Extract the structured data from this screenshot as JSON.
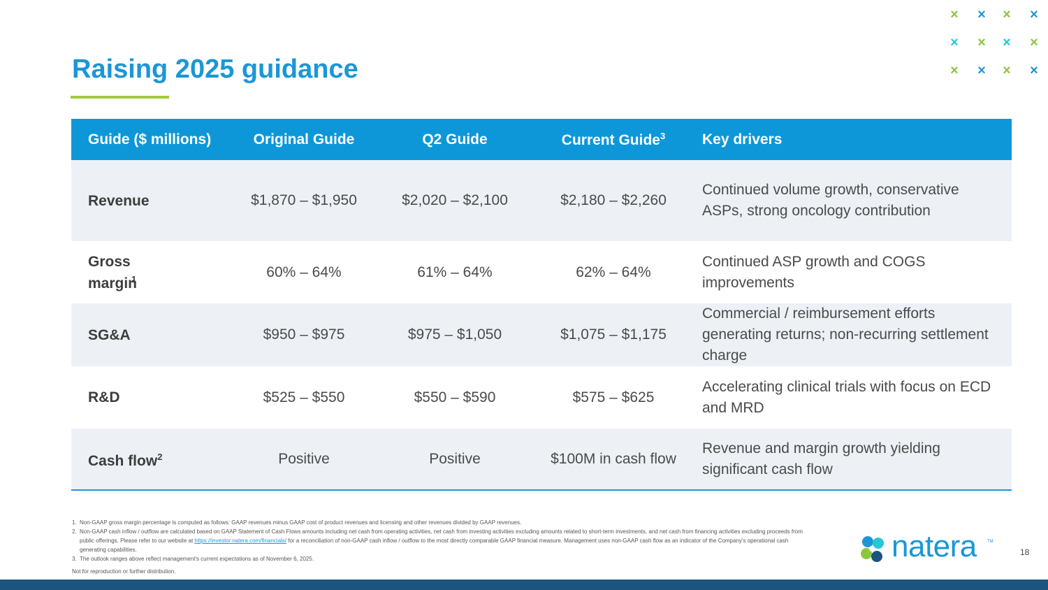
{
  "title": "Raising 2025 guidance",
  "colors": {
    "title": "#1b96d6",
    "accent_green": "#a3c940",
    "header_bg": "#0d97d9",
    "bottom_bar": "#1c5480",
    "x_green": "#8cc63f",
    "x_blue": "#1b96d6",
    "x_teal": "#29c5d8"
  },
  "table": {
    "headers": {
      "guide": "Guide ($ millions)",
      "original": "Original Guide",
      "q2": "Q2 Guide",
      "current": "Current Guide",
      "current_sup": "3",
      "drivers": "Key drivers"
    },
    "rows": [
      {
        "label": "Revenue",
        "sup": "",
        "original": "$1,870 – $1,950",
        "q2": "$2,020 – $2,100",
        "current": "$2,180 – $2,260",
        "drivers": "Continued volume growth, conservative ASPs, strong oncology contribution"
      },
      {
        "label": "Gross margin",
        "sup": "1",
        "original": "60% – 64%",
        "q2": "61% – 64%",
        "current": "62% – 64%",
        "drivers": "Continued ASP growth and COGS improvements"
      },
      {
        "label": "SG&A",
        "sup": "",
        "original": "$950 – $975",
        "q2": "$975 – $1,050",
        "current": "$1,075 – $1,175",
        "drivers": "Commercial / reimbursement efforts generating returns; non-recurring settlement charge"
      },
      {
        "label": "R&D",
        "sup": "",
        "original": "$525 – $550",
        "q2": "$550 – $590",
        "current": "$575 – $625",
        "drivers": "Accelerating clinical trials with focus on ECD and MRD"
      },
      {
        "label": "Cash flow",
        "sup": "2",
        "original": "Positive",
        "q2": "Positive",
        "current": "$100M in cash flow",
        "drivers": "Revenue and margin growth yielding significant cash flow"
      }
    ]
  },
  "footnotes": {
    "fn1": {
      "num": "1.",
      "text": "Non-GAAP gross margin percentage is computed as follows: GAAP revenues minus GAAP cost of product revenues and licensing and other revenues divided by GAAP revenues."
    },
    "fn2": {
      "num": "2.",
      "text_before": "Non-GAAP cash inflow / outflow are calculated based on GAAP Statement of Cash Flows amounts including net cash from operating activities, net cash from investing activities excluding amounts related to short-term investments, and net cash from financing activities excluding proceeds from public offerings. Please refer to our website at ",
      "link": "https://investor.natera.com/financials/",
      "text_after": " for a reconciliation of non-GAAP cash inflow / outflow to the most directly comparable GAAP financial measure. Management uses non-GAAP cash flow as an indicator of the Company's operational cash generating capabilities."
    },
    "fn3": {
      "num": "3.",
      "text": "The outlook ranges above reflect management's current expectations as of November 6, 2025."
    },
    "notice": "Not for reproduction or further distribution."
  },
  "logo": {
    "name": "natera",
    "tm": "TM",
    "icon": "natera-logo-icon"
  },
  "page_number": "18",
  "decoration": {
    "x_marks": [
      [
        "green",
        "blue",
        "green",
        "blue"
      ],
      [
        "teal",
        "green",
        "teal",
        "green"
      ],
      [
        "green",
        "blue",
        "green",
        "blue"
      ]
    ],
    "x_glyph": "×"
  }
}
